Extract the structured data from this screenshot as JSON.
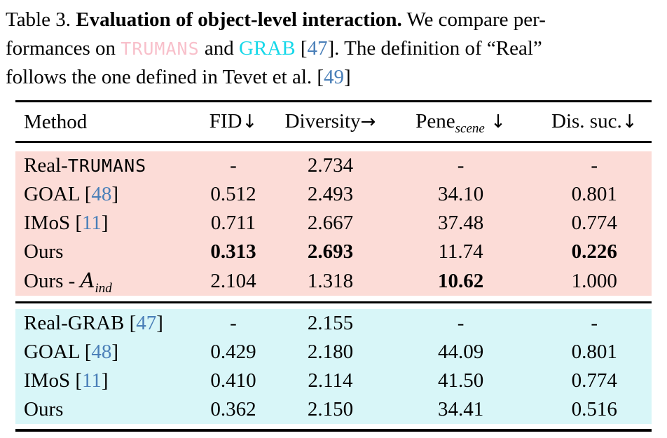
{
  "caption": {
    "label": "Table 3. ",
    "title_bold": "Evaluation of object-level interaction.",
    "rest1": " We compare per-",
    "l2a": "formances on ",
    "trumans": "TRUMANS",
    "l2b": " and ",
    "grab": "GRAB",
    "l2c": " [",
    "c47": "47",
    "l2d": "]. The definition of “Real”",
    "l3a": "follows the one defined in Tevet et al. [",
    "c49": "49",
    "l3b": "]"
  },
  "colors": {
    "trumans_pink_text": "#f8bfca",
    "grab_cyan_text": "#16d8e9",
    "citation_blue": "#4a7fb8",
    "trumans_section_bg": "#fcdcd7",
    "grab_section_bg": "#d8f6f8"
  },
  "table": {
    "head": {
      "method": "Method",
      "fid": "FID",
      "fid_arrow": "↓",
      "diversity": "Diversity",
      "diversity_arrow": "→",
      "pene": "Pene",
      "pene_sub": "scene",
      "pene_arrow": " ↓",
      "dis": "Dis. suc.",
      "dis_arrow": "↓"
    },
    "s1": [
      {
        "m1": "Real-",
        "mono": "TRUMANS",
        "fid": "-",
        "div": "2.734",
        "pene": "-",
        "dis": "-"
      },
      {
        "m1": "GOAL [",
        "cite": "48",
        "m2": "]",
        "fid": "0.512",
        "div": "2.493",
        "pene": "34.10",
        "dis": "0.801"
      },
      {
        "m1": "IMoS [",
        "cite": "11",
        "m2": "]",
        "fid": "0.711",
        "div": "2.667",
        "pene": "37.48",
        "dis": "0.774"
      },
      {
        "m1": "Ours",
        "fid": "0.313",
        "div": "2.693",
        "pene": "11.74",
        "dis": "0.226"
      },
      {
        "m1": "Ours - ",
        "cal": "A",
        "sub": "ind",
        "fid": "2.104",
        "div": "1.318",
        "pene": "10.62",
        "dis": "1.000"
      }
    ],
    "s2": [
      {
        "m1": "Real-GRAB [",
        "cite": "47",
        "m2": "]",
        "fid": "-",
        "div": "2.155",
        "pene": "-",
        "dis": "-"
      },
      {
        "m1": "GOAL [",
        "cite": "48",
        "m2": "]",
        "fid": "0.429",
        "div": "2.180",
        "pene": "44.09",
        "dis": "0.801"
      },
      {
        "m1": "IMoS [",
        "cite": "11",
        "m2": "]",
        "fid": "0.410",
        "div": "2.114",
        "pene": "41.50",
        "dis": "0.774"
      },
      {
        "m1": "Ours",
        "fid": "0.362",
        "div": "2.150",
        "pene": "34.41",
        "dis": "0.516"
      }
    ]
  }
}
